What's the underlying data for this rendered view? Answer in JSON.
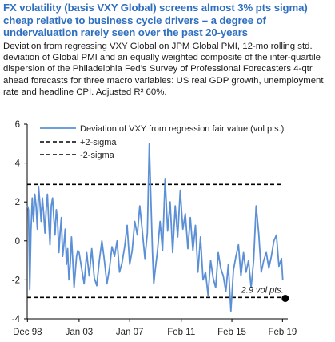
{
  "chart_data": {
    "type": "line",
    "title": "FX volatility (basis VXY Global) screens almost 3% pts sigma) cheap relative to business cycle drivers – a degree of undervaluation rarely seen over the past 20-years",
    "subtitle": "Deviation from regressing VXY Global on JPM Global PMI, 12-mo rolling std. deviation of Global PMI and an equally weighted composite of the inter-quartile dispersion of the Philadelphia Fed’s Survey of Professional Forecasters 4-qtr ahead forecasts for three macro variables: US real GDP growth, unemployment rate and headline CPI. Adjusted R² 60%.",
    "xlabel": "",
    "ylabel": "",
    "ylim": [
      -4,
      6
    ],
    "yticks": [
      "6",
      "4",
      "2",
      "0",
      "-2",
      "-4"
    ],
    "xlim": [
      1998.9,
      2019.5
    ],
    "xticks": [
      {
        "label": "Dec 98",
        "x": 1998.92
      },
      {
        "label": "Jan 03",
        "x": 2003.0
      },
      {
        "label": "Jan 07",
        "x": 2007.0
      },
      {
        "label": "Feb 11",
        "x": 2011.08
      },
      {
        "label": "Feb 15",
        "x": 2015.08
      },
      {
        "label": "Feb 19",
        "x": 2019.08
      }
    ],
    "grid": false,
    "legend_position": "top-right",
    "reference_lines": [
      {
        "name": "+2-sigma",
        "y": 2.9
      },
      {
        "name": "-2-sigma",
        "y": -2.9
      }
    ],
    "annotation": {
      "text": "2.9 vol pts.",
      "x": 2019.3,
      "y": -2.95
    },
    "series": [
      {
        "name": "Deviation of VXY from regression fair value (vol pts.)",
        "color": "#5b8fd6",
        "x": [
          1998.92,
          1999.0,
          1999.1,
          1999.2,
          1999.3,
          1999.4,
          1999.5,
          1999.6,
          1999.7,
          1999.8,
          1999.9,
          2000.0,
          2000.1,
          2000.2,
          2000.3,
          2000.4,
          2000.5,
          2000.6,
          2000.7,
          2000.8,
          2000.9,
          2001.0,
          2001.1,
          2001.2,
          2001.3,
          2001.4,
          2001.5,
          2001.6,
          2001.7,
          2001.8,
          2001.9,
          2002.0,
          2002.1,
          2002.2,
          2002.3,
          2002.4,
          2002.5,
          2002.6,
          2002.7,
          2002.8,
          2002.9,
          2003.0,
          2003.2,
          2003.4,
          2003.6,
          2003.8,
          2004.0,
          2004.2,
          2004.4,
          2004.6,
          2004.8,
          2005.0,
          2005.2,
          2005.4,
          2005.6,
          2005.8,
          2006.0,
          2006.2,
          2006.4,
          2006.6,
          2006.8,
          2007.0,
          2007.2,
          2007.4,
          2007.6,
          2007.8,
          2008.0,
          2008.2,
          2008.4,
          2008.55,
          2008.7,
          2008.8,
          2008.9,
          2009.0,
          2009.2,
          2009.4,
          2009.6,
          2009.8,
          2010.0,
          2010.2,
          2010.4,
          2010.6,
          2010.8,
          2011.0,
          2011.2,
          2011.4,
          2011.6,
          2011.8,
          2012.0,
          2012.2,
          2012.4,
          2012.6,
          2012.8,
          2013.0,
          2013.2,
          2013.4,
          2013.6,
          2013.8,
          2014.0,
          2014.2,
          2014.4,
          2014.6,
          2014.8,
          2015.0,
          2015.2,
          2015.4,
          2015.6,
          2015.8,
          2016.0,
          2016.2,
          2016.4,
          2016.6,
          2016.8,
          2017.0,
          2017.2,
          2017.4,
          2017.6,
          2017.8,
          2018.0,
          2018.2,
          2018.4,
          2018.6,
          2018.8,
          2019.0,
          2019.1
        ],
        "values": [
          1.8,
          1.6,
          -2.5,
          0.5,
          2.2,
          1.0,
          2.4,
          1.8,
          0.6,
          2.8,
          2.0,
          1.0,
          2.2,
          1.4,
          0.4,
          1.6,
          2.4,
          1.0,
          -0.2,
          1.8,
          2.2,
          1.2,
          0.3,
          1.6,
          1.0,
          -0.6,
          0.4,
          1.2,
          -0.8,
          -0.2,
          0.6,
          -1.2,
          -0.4,
          -2.0,
          -1.2,
          0.2,
          -1.0,
          -2.4,
          -1.6,
          -0.8,
          -0.5,
          -0.6,
          -1.4,
          -2.2,
          -0.6,
          -1.8,
          -0.4,
          -1.9,
          -2.3,
          -1.0,
          0.0,
          -1.0,
          -2.2,
          -1.4,
          -0.3,
          -0.8,
          0.0,
          -1.6,
          -1.1,
          -0.3,
          0.8,
          -1.2,
          -0.5,
          1.0,
          0.3,
          1.8,
          0.5,
          -0.9,
          0.4,
          5.0,
          1.6,
          -0.6,
          -2.2,
          -1.6,
          -0.5,
          1.0,
          -0.5,
          3.2,
          0.5,
          2.0,
          -0.6,
          1.8,
          0.2,
          2.6,
          0.6,
          1.4,
          -0.4,
          1.2,
          -0.5,
          0.8,
          -1.6,
          0.2,
          -2.0,
          -1.6,
          -2.8,
          -1.0,
          -1.9,
          -2.4,
          -0.6,
          -1.4,
          -1.8,
          -2.6,
          -1.2,
          -3.6,
          -1.5,
          -0.8,
          -0.2,
          -1.8,
          -0.6,
          -1.6,
          -1.0,
          -2.4,
          -1.0,
          1.8,
          0.4,
          -1.6,
          -1.0,
          -0.6,
          -1.4,
          -0.8,
          0.0,
          0.3,
          -1.3,
          -0.9,
          -2.0
        ]
      }
    ]
  }
}
